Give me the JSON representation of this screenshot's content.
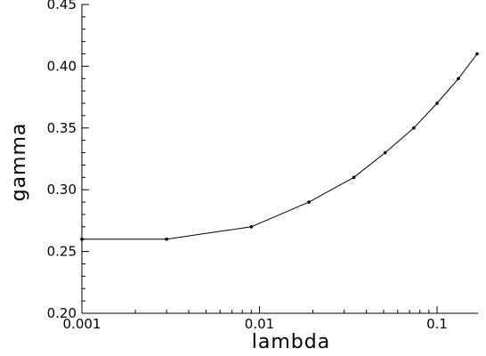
{
  "chart_data": {
    "type": "line",
    "title": "",
    "xlabel": "lambda",
    "ylabel": "gamma",
    "xscale": "log",
    "xlim": [
      0.001,
      0.17
    ],
    "ylim": [
      0.2,
      0.45
    ],
    "grid": false,
    "legend": "none",
    "x_ticks": [
      {
        "value": 0.001,
        "label": "0.001"
      },
      {
        "value": 0.01,
        "label": "0.01"
      },
      {
        "value": 0.1,
        "label": "0.1"
      }
    ],
    "y_ticks": [
      {
        "value": 0.2,
        "label": "0.20"
      },
      {
        "value": 0.25,
        "label": "0.25"
      },
      {
        "value": 0.3,
        "label": "0.30"
      },
      {
        "value": 0.35,
        "label": "0.35"
      },
      {
        "value": 0.4,
        "label": "0.40"
      },
      {
        "value": 0.45,
        "label": "0.45"
      }
    ],
    "series": [
      {
        "x": [
          0.001,
          0.003,
          0.009,
          0.019,
          0.034,
          0.051,
          0.074,
          0.1,
          0.132,
          0.168
        ],
        "y": [
          0.26,
          0.26,
          0.27,
          0.29,
          0.31,
          0.33,
          0.35,
          0.37,
          0.39,
          0.41
        ],
        "color": "#000000"
      }
    ]
  }
}
